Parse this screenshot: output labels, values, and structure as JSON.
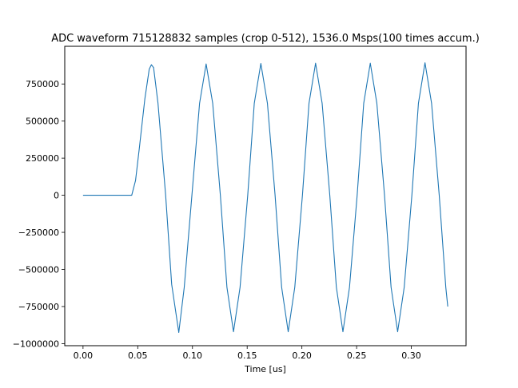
{
  "chart_data": {
    "type": "line",
    "title": "ADC waveform 715128832 samples (crop 0-512), 1536.0 Msps(100 times accum.)",
    "xlabel": "Time [us]",
    "ylabel": "",
    "xlim": [
      -0.0167,
      0.35
    ],
    "ylim": [
      -1014000,
      1004000
    ],
    "x_ticks": [
      0.0,
      0.05,
      0.1,
      0.15,
      0.2,
      0.25,
      0.3
    ],
    "x_tick_labels": [
      "0.00",
      "0.05",
      "0.10",
      "0.15",
      "0.20",
      "0.25",
      "0.30"
    ],
    "y_ticks": [
      750000,
      500000,
      250000,
      0,
      -250000,
      -500000,
      -750000,
      -1000000
    ],
    "y_tick_labels": [
      "750000",
      "500000",
      "250000",
      "0",
      "−250000",
      "−500000",
      "−750000",
      "−1000000"
    ],
    "grid": false,
    "legend": "none",
    "series": [
      {
        "color": "#1f77b4",
        "x": [
          0.0,
          0.0445,
          0.048,
          0.0515,
          0.053,
          0.0565,
          0.0605,
          0.0625,
          0.0645,
          0.0685,
          0.0755,
          0.081,
          0.0875,
          0.0925,
          0.0995,
          0.1065,
          0.1125,
          0.1185,
          0.1255,
          0.1315,
          0.1375,
          0.1435,
          0.1505,
          0.1565,
          0.1625,
          0.1685,
          0.1755,
          0.1815,
          0.1875,
          0.1935,
          0.2005,
          0.2065,
          0.2125,
          0.2185,
          0.2255,
          0.2315,
          0.2375,
          0.2435,
          0.2505,
          0.2565,
          0.2625,
          0.2685,
          0.2755,
          0.2815,
          0.2875,
          0.2935,
          0.3005,
          0.3065,
          0.3125,
          0.3185,
          0.3255,
          0.3315,
          0.3333
        ],
        "y": [
          0,
          0,
          100000,
          320000,
          420000,
          650000,
          850000,
          880000,
          860000,
          620000,
          0,
          -600000,
          -925000,
          -620000,
          0,
          620000,
          885000,
          620000,
          0,
          -620000,
          -920000,
          -620000,
          0,
          620000,
          888000,
          620000,
          0,
          -620000,
          -920000,
          -620000,
          0,
          620000,
          890000,
          620000,
          0,
          -620000,
          -920000,
          -620000,
          0,
          620000,
          890000,
          620000,
          0,
          -620000,
          -920000,
          -620000,
          0,
          620000,
          893000,
          620000,
          0,
          -620000,
          -750000
        ]
      }
    ]
  }
}
